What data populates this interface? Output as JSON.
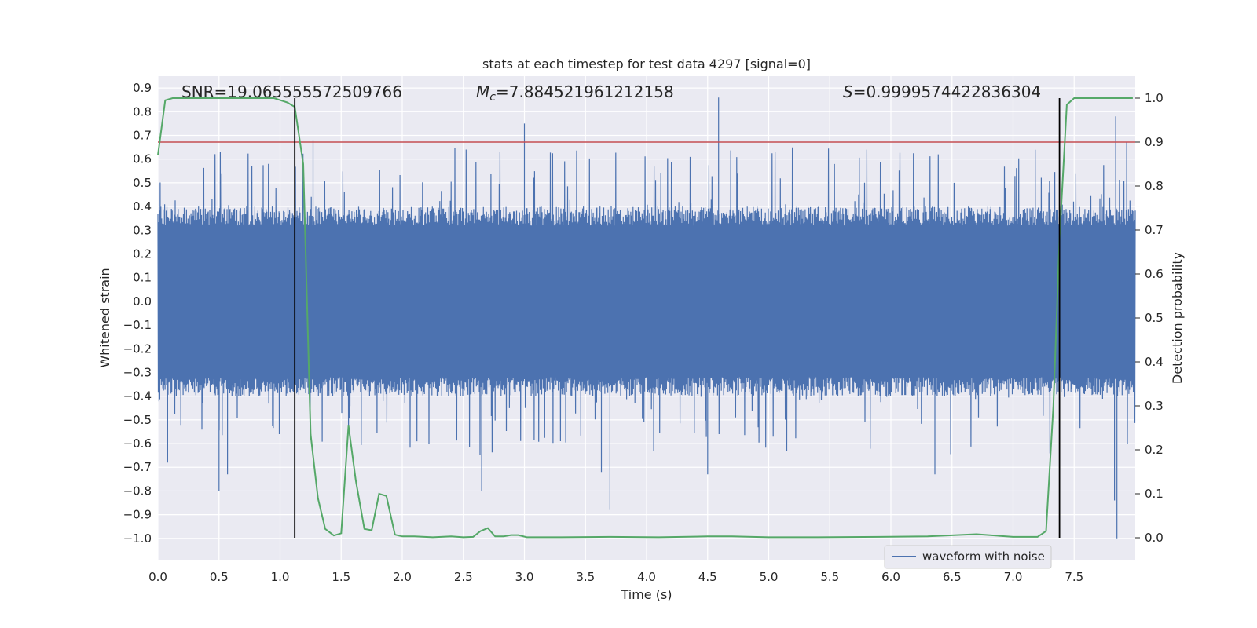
{
  "chart_data": {
    "type": "line",
    "title": "stats at each timestep for test data 4297 [signal=0]",
    "xlabel": "Time (s)",
    "ylabel_left": "Whitened strain",
    "ylabel_right": "Detection probability",
    "xlim": [
      0,
      8.0
    ],
    "ylim_left": [
      -1.09,
      0.95
    ],
    "ylim_right": [
      -0.05,
      1.05
    ],
    "x_ticks": [
      "0.0",
      "0.5",
      "1.0",
      "1.5",
      "2.0",
      "2.5",
      "3.0",
      "3.5",
      "4.0",
      "4.5",
      "5.0",
      "5.5",
      "6.0",
      "6.5",
      "7.0",
      "7.5"
    ],
    "y_left_ticks": [
      "0.9",
      "0.8",
      "0.7",
      "0.6",
      "0.5",
      "0.4",
      "0.3",
      "0.2",
      "0.1",
      "0.0",
      "−0.1",
      "−0.2",
      "−0.3",
      "−0.4",
      "−0.5",
      "−0.6",
      "−0.7",
      "−0.8",
      "−0.9",
      "−1.0"
    ],
    "y_right_ticks": [
      "1.0",
      "0.9",
      "0.8",
      "0.7",
      "0.6",
      "0.5",
      "0.4",
      "0.3",
      "0.2",
      "0.1",
      "0.0"
    ],
    "annotations": {
      "snr": "SNR=19.065555572509766",
      "mc_symbol": "M",
      "mc_sub": "c",
      "mc_value": "=7.884521961212158",
      "s_symbol": "S",
      "s_value": "=0.9999574422836304"
    },
    "threshold": 0.9,
    "vlines": [
      1.12,
      7.38
    ],
    "series": [
      {
        "name": "waveform with noise",
        "axis": "left",
        "style": "dense-noise",
        "color": "#4c72b0",
        "core_amplitude": 0.32,
        "tail_amplitude": 0.65,
        "outliers": [
          {
            "x": 0.5,
            "y": -0.8
          },
          {
            "x": 0.57,
            "y": -0.73
          },
          {
            "x": 0.08,
            "y": -0.68
          },
          {
            "x": 1.12,
            "y": 0.84
          },
          {
            "x": 1.27,
            "y": 0.68
          },
          {
            "x": 2.65,
            "y": -0.8
          },
          {
            "x": 3.0,
            "y": 0.75
          },
          {
            "x": 3.7,
            "y": -0.88
          },
          {
            "x": 3.63,
            "y": -0.72
          },
          {
            "x": 4.59,
            "y": 0.86
          },
          {
            "x": 4.5,
            "y": -0.73
          },
          {
            "x": 6.36,
            "y": -0.73
          },
          {
            "x": 7.84,
            "y": 0.78
          },
          {
            "x": 7.85,
            "y": -1.0
          },
          {
            "x": 7.83,
            "y": -0.84
          },
          {
            "x": 7.93,
            "y": 0.67
          }
        ]
      },
      {
        "name": "detection probability",
        "axis": "right",
        "color": "#55a868",
        "x": [
          0.0,
          0.06,
          0.12,
          0.25,
          0.5,
          0.75,
          0.95,
          1.06,
          1.12,
          1.19,
          1.25,
          1.31,
          1.37,
          1.44,
          1.5,
          1.56,
          1.62,
          1.69,
          1.75,
          1.81,
          1.87,
          1.94,
          2.0,
          2.1,
          2.25,
          2.4,
          2.5,
          2.58,
          2.64,
          2.7,
          2.76,
          2.83,
          2.89,
          2.95,
          3.02,
          3.3,
          3.7,
          4.1,
          4.5,
          4.7,
          5.0,
          5.4,
          5.9,
          6.3,
          6.7,
          7.0,
          7.2,
          7.27,
          7.33,
          7.38,
          7.44,
          7.5,
          7.7,
          7.98
        ],
        "values": [
          0.87,
          0.995,
          1.0,
          1.0,
          1.0,
          1.0,
          1.0,
          0.99,
          0.98,
          0.85,
          0.235,
          0.09,
          0.02,
          0.005,
          0.01,
          0.255,
          0.13,
          0.02,
          0.017,
          0.1,
          0.095,
          0.007,
          0.003,
          0.003,
          0.001,
          0.003,
          0.001,
          0.002,
          0.015,
          0.022,
          0.003,
          0.003,
          0.006,
          0.006,
          0.001,
          0.001,
          0.002,
          0.001,
          0.003,
          0.003,
          0.001,
          0.001,
          0.002,
          0.003,
          0.008,
          0.002,
          0.002,
          0.015,
          0.3,
          0.68,
          0.985,
          1.0,
          1.0,
          1.0
        ]
      }
    ],
    "legend": {
      "label": "waveform with noise",
      "placement": "lower-right"
    },
    "colors": {
      "axes_bg": "#eaeaf2",
      "grid": "#ffffff",
      "threshold": "#c44e52",
      "vline": "#000000"
    }
  }
}
